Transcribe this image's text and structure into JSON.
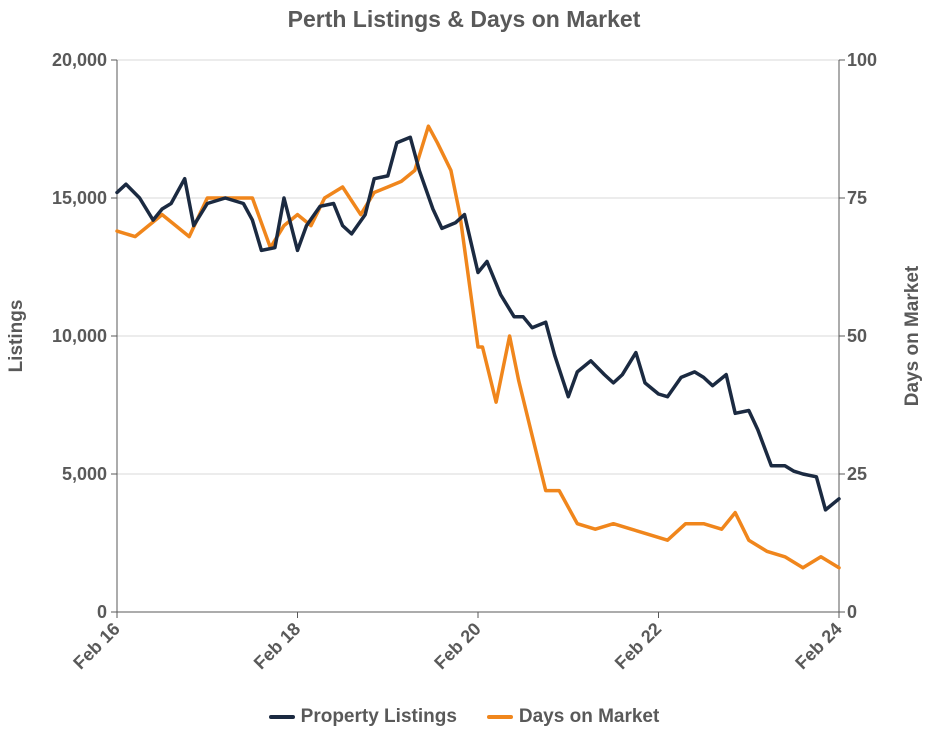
{
  "chart_data": {
    "type": "line",
    "title": "Perth Listings & Days on Market",
    "ylabel_left": "Listings",
    "ylabel_right": "Days on Market",
    "ylim_left": [
      0,
      20000
    ],
    "ylim_right": [
      0,
      100
    ],
    "yticks_left": [
      "0",
      "5,000",
      "10,000",
      "15,000",
      "20,000"
    ],
    "yticks_right": [
      "0",
      "25",
      "50",
      "75",
      "100"
    ],
    "xlim": [
      2016,
      2024
    ],
    "xticks": [
      {
        "label": "Feb 16",
        "value": 2016
      },
      {
        "label": "Feb 18",
        "value": 2018
      },
      {
        "label": "Feb 20",
        "value": 2020
      },
      {
        "label": "Feb 22",
        "value": 2022
      },
      {
        "label": "Feb 24",
        "value": 2024
      }
    ],
    "grid": "horizontal",
    "legend_position": "bottom",
    "series": [
      {
        "name": "Property Listings",
        "axis": "left",
        "color": "#1b2a41",
        "x": [
          2016.0,
          2016.1,
          2016.25,
          2016.4,
          2016.5,
          2016.6,
          2016.75,
          2016.85,
          2017.0,
          2017.2,
          2017.4,
          2017.5,
          2017.6,
          2017.75,
          2017.85,
          2018.0,
          2018.1,
          2018.25,
          2018.4,
          2018.5,
          2018.6,
          2018.75,
          2018.85,
          2019.0,
          2019.1,
          2019.25,
          2019.35,
          2019.5,
          2019.6,
          2019.75,
          2019.85,
          2020.0,
          2020.1,
          2020.25,
          2020.4,
          2020.5,
          2020.6,
          2020.75,
          2020.85,
          2021.0,
          2021.1,
          2021.25,
          2021.4,
          2021.5,
          2021.6,
          2021.75,
          2021.85,
          2022.0,
          2022.1,
          2022.25,
          2022.4,
          2022.5,
          2022.6,
          2022.75,
          2022.85,
          2023.0,
          2023.1,
          2023.25,
          2023.4,
          2023.5,
          2023.6,
          2023.75,
          2023.85,
          2024.0
        ],
        "values": [
          15200,
          15500,
          15000,
          14200,
          14600,
          14800,
          15700,
          14000,
          14800,
          15000,
          14800,
          14200,
          13100,
          13200,
          15000,
          13100,
          14000,
          14700,
          14800,
          14000,
          13700,
          14400,
          15700,
          15800,
          17000,
          17200,
          16000,
          14600,
          13900,
          14100,
          14400,
          12300,
          12700,
          11500,
          10700,
          10700,
          10300,
          10500,
          9300,
          7800,
          8700,
          9100,
          8600,
          8300,
          8600,
          9400,
          8300,
          7900,
          7800,
          8500,
          8700,
          8500,
          8200,
          8600,
          7200,
          7300,
          6600,
          5300,
          5300,
          5100,
          5000,
          4900,
          3700,
          4100
        ]
      },
      {
        "name": "Days on Market",
        "axis": "right",
        "color": "#f0861c",
        "x": [
          2016.0,
          2016.2,
          2016.35,
          2016.5,
          2016.65,
          2016.8,
          2017.0,
          2017.15,
          2017.3,
          2017.5,
          2017.7,
          2017.85,
          2018.0,
          2018.15,
          2018.3,
          2018.5,
          2018.7,
          2018.85,
          2019.0,
          2019.15,
          2019.3,
          2019.45,
          2019.55,
          2019.7,
          2019.8,
          2020.0,
          2020.05,
          2020.2,
          2020.35,
          2020.45,
          2020.6,
          2020.75,
          2020.9,
          2021.1,
          2021.3,
          2021.5,
          2021.7,
          2021.9,
          2022.1,
          2022.3,
          2022.5,
          2022.7,
          2022.85,
          2023.0,
          2023.2,
          2023.4,
          2023.6,
          2023.8,
          2024.0
        ],
        "values": [
          69,
          68,
          70,
          72,
          70,
          68,
          75,
          75,
          75,
          75,
          66,
          70,
          72,
          70,
          75,
          77,
          72,
          76,
          77,
          78,
          80,
          88,
          85,
          80,
          72,
          48,
          48,
          38,
          50,
          42,
          32,
          22,
          22,
          16,
          15,
          16,
          15,
          14,
          13,
          16,
          16,
          15,
          18,
          13,
          11,
          10,
          8,
          10,
          8
        ]
      }
    ]
  }
}
